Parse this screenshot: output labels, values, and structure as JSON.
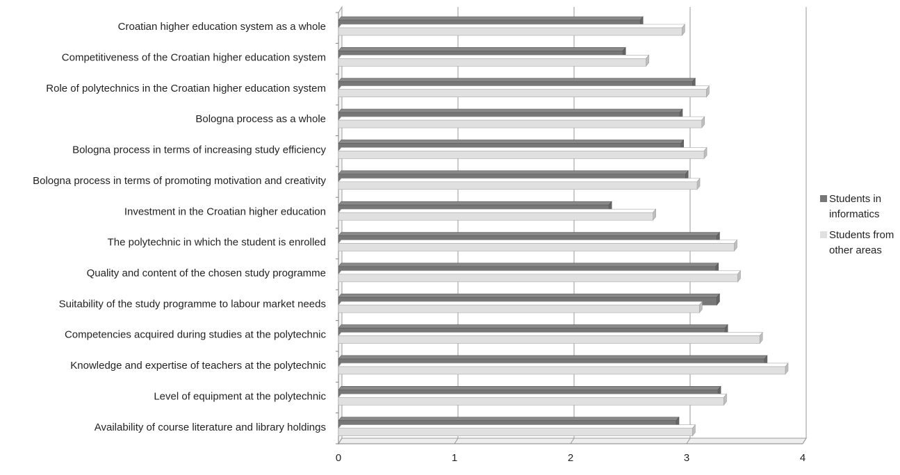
{
  "chart_data": {
    "type": "bar",
    "orientation": "horizontal",
    "categories": [
      "Croatian higher education system as a whole",
      "Competitiveness of the Croatian  higher education system",
      "Role of polytechnics in the Croatian higher education system",
      "Bologna process as a whole",
      "Bologna process in terms of increasing study efficiency",
      "Bologna process in terms of promoting motivation  and creativity",
      "Investment in the Croatian higher education",
      "The polytechnic in which the student is enrolled",
      "Quality and content of the chosen study programme",
      "Suitability of the study programme to labour market needs",
      "Competencies acquired during studies at the polytechnic",
      "Knowledge and expertise of teachers at the polytechnic",
      "Level of equipment at the polytechnic",
      "Availability of course literature and library holdings"
    ],
    "series": [
      {
        "name": "Students in informatics",
        "color": "#777777",
        "values": [
          2.6,
          2.45,
          3.05,
          2.94,
          2.95,
          2.99,
          2.33,
          3.26,
          3.25,
          3.26,
          3.33,
          3.67,
          3.27,
          2.91
        ]
      },
      {
        "name": "Students from other areas",
        "color": "#e0e0e0",
        "values": [
          2.96,
          2.65,
          3.17,
          3.13,
          3.15,
          3.09,
          2.71,
          3.41,
          3.44,
          3.11,
          3.63,
          3.85,
          3.32,
          3.05
        ]
      }
    ],
    "xlim": [
      0,
      4
    ],
    "x_ticks": [
      "0",
      "1",
      "2",
      "3",
      "4"
    ],
    "legend_position": "right",
    "grid": "vertical",
    "style": "3d"
  }
}
